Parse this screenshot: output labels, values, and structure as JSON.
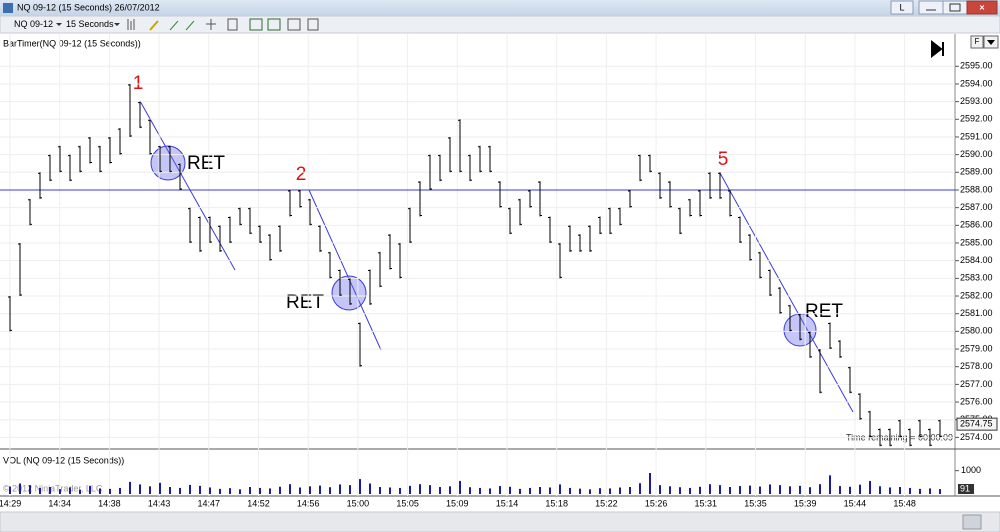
{
  "window": {
    "title": "NQ 09-12 (15 Seconds)  26/07/2012",
    "button": "L"
  },
  "toolbar": {
    "instrument": "NQ 09-12",
    "interval": "15 Seconds"
  },
  "chart_data": {
    "type": "range-bar",
    "indicator_label": "BarTimer(NQ 09-12 (15 Seconds))",
    "color": "#000000",
    "low": [
      2580,
      2582,
      2586,
      2587.5,
      2588.5,
      2589,
      2588.5,
      2589,
      2589.5,
      2589,
      2589.5,
      2590,
      2591,
      2591.5,
      2590,
      2589,
      2589,
      2588,
      2585,
      2584.5,
      2585,
      2584.5,
      2585,
      2586,
      2585.5,
      2585,
      2584,
      2584.5,
      2586.5,
      2587,
      2586,
      2584.5,
      2583,
      2582,
      2581.5,
      2578,
      2581.5,
      2582.5,
      2583.5,
      2583,
      2585,
      2586.5,
      2588,
      2588.5,
      2589,
      2589,
      2588.5,
      2589,
      2589,
      2587,
      2585.5,
      2586,
      2587,
      2586.5,
      2585,
      2583,
      2584.5,
      2584.5,
      2584.5,
      2585.5,
      2585.5,
      2586,
      2587,
      2588.5,
      2589,
      2587.5,
      2587,
      2585.5,
      2586.5,
      2586.5,
      2587.5,
      2587.5,
      2586.5,
      2585,
      2584,
      2583,
      2582,
      2581,
      2580,
      2579.5,
      2578.5,
      2576.5,
      2579,
      2578.5,
      2576.5,
      2575,
      2574,
      2573.5,
      2573.5,
      2574,
      2573.5,
      2574,
      2573.5,
      2574
    ],
    "high": [
      2582,
      2585,
      2587.5,
      2589,
      2590,
      2590.5,
      2590,
      2590.5,
      2591,
      2590.5,
      2591,
      2591.5,
      2594,
      2593,
      2592,
      2590.5,
      2590.5,
      2589.5,
      2587,
      2586.5,
      2586.5,
      2586,
      2586.5,
      2587,
      2587,
      2586,
      2585.5,
      2586,
      2588,
      2588,
      2587.5,
      2586,
      2584.5,
      2583.5,
      2583,
      2580.5,
      2583.5,
      2584.5,
      2585.5,
      2585,
      2587,
      2588.5,
      2590,
      2590,
      2591,
      2592,
      2590,
      2590.5,
      2590.5,
      2588.5,
      2587,
      2587.5,
      2588,
      2588.5,
      2586.5,
      2585,
      2586,
      2585.5,
      2586,
      2586.5,
      2587,
      2587,
      2588,
      2590,
      2590,
      2589,
      2588.5,
      2587,
      2587.5,
      2588,
      2589,
      2589,
      2588,
      2586.5,
      2585.5,
      2584.5,
      2583.5,
      2582.5,
      2581.5,
      2581,
      2580,
      2579,
      2580.5,
      2579.5,
      2578,
      2576.5,
      2575.5,
      2574.5,
      2574.5,
      2575,
      2574.5,
      2575,
      2574.5,
      2575
    ],
    "ylim": [
      2573.4,
      2596.6
    ],
    "yticks": [
      {
        "value": 2574,
        "label": "2574.00"
      },
      {
        "value": 2575,
        "label": "2575.00"
      },
      {
        "value": 2576,
        "label": "2576.00"
      },
      {
        "value": 2577,
        "label": "2577.00"
      },
      {
        "value": 2578,
        "label": "2578.00"
      },
      {
        "value": 2579,
        "label": "2579.00"
      },
      {
        "value": 2580,
        "label": "2580.00"
      },
      {
        "value": 2581,
        "label": "2581.00"
      },
      {
        "value": 2582,
        "label": "2582.00"
      },
      {
        "value": 2583,
        "label": "2583.00"
      },
      {
        "value": 2584,
        "label": "2584.00"
      },
      {
        "value": 2585,
        "label": "2585.00"
      },
      {
        "value": 2586,
        "label": "2586.00"
      },
      {
        "value": 2587,
        "label": "2587.00"
      },
      {
        "value": 2588,
        "label": "2588.00"
      },
      {
        "value": 2589,
        "label": "2589.00"
      },
      {
        "value": 2590,
        "label": "2590.00"
      },
      {
        "value": 2591,
        "label": "2591.00"
      },
      {
        "value": 2592,
        "label": "2592.00"
      },
      {
        "value": 2593,
        "label": "2593.00"
      },
      {
        "value": 2594,
        "label": "2594.00"
      },
      {
        "value": 2595,
        "label": "2595.00"
      }
    ],
    "time_labels": [
      "14:29",
      "14:34",
      "14:38",
      "14:43",
      "14:47",
      "14:52",
      "14:56",
      "15:00",
      "15:05",
      "15:09",
      "15:14",
      "15:18",
      "15:22",
      "15:26",
      "15:31",
      "15:35",
      "15:39",
      "15:44",
      "15:48"
    ],
    "hline": {
      "value": 2588,
      "color": "#3b3bd9"
    },
    "last_price": 2574.75,
    "timer_text": "Time remaining = 00:00:09",
    "annotations": [
      "1",
      "RET",
      "2",
      "RET",
      "5",
      "RET"
    ],
    "volume": {
      "label": "VOL (NQ 09-12 (15 Seconds))",
      "color": "#1a1aa6",
      "values": [
        320,
        450,
        380,
        260,
        300,
        210,
        280,
        190,
        350,
        240,
        220,
        260,
        520,
        410,
        330,
        480,
        300,
        260,
        390,
        350,
        280,
        220,
        250,
        200,
        300,
        260,
        240,
        310,
        420,
        280,
        330,
        360,
        290,
        410,
        380,
        640,
        450,
        300,
        280,
        260,
        350,
        420,
        380,
        300,
        330,
        560,
        290,
        260,
        240,
        340,
        310,
        220,
        260,
        300,
        280,
        410,
        260,
        230,
        200,
        250,
        240,
        280,
        300,
        460,
        900,
        380,
        330,
        290,
        260,
        310,
        420,
        380,
        300,
        340,
        360,
        320,
        410,
        380,
        330,
        350,
        290,
        420,
        800,
        340,
        310,
        400,
        560,
        330,
        280,
        300,
        260,
        220,
        240,
        210
      ],
      "ylim": [
        0,
        1800
      ],
      "yticks": [
        1000
      ],
      "last_label": "91"
    },
    "watermark": "© 2012 NinjaTrader, LLC"
  }
}
